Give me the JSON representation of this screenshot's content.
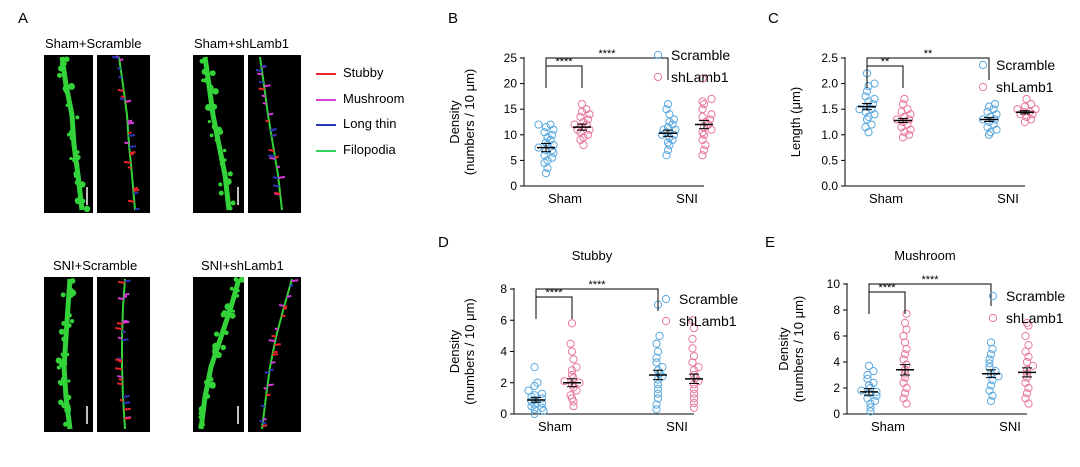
{
  "panel_a": {
    "letter": "A",
    "images": [
      {
        "title": "Sham+Scramble"
      },
      {
        "title": "Sham+shLamb1"
      },
      {
        "title": "SNI+Scramble"
      },
      {
        "title": "SNI+shLamb1"
      }
    ],
    "legend": [
      {
        "label": "Stubby",
        "color": "#e8262a"
      },
      {
        "label": "Mushroom",
        "color": "#d63cd6"
      },
      {
        "label": "Long thin",
        "color": "#2b35b8"
      },
      {
        "label": "Filopodia",
        "color": "#33d35a"
      }
    ]
  },
  "colors": {
    "scramble": "#5aa9df",
    "shlamb1": "#e8789a",
    "dendrite_green": "#33d33a"
  },
  "chart_data": [
    {
      "panel": "B",
      "type": "scatter",
      "title": "",
      "ylabel_lines": [
        "Density",
        "(numbers / 10 μm)"
      ],
      "ylim": [
        0,
        25
      ],
      "yticks": [
        0,
        5,
        10,
        15,
        20,
        25
      ],
      "categories": [
        "Sham",
        "SNI"
      ],
      "series": [
        {
          "name": "Scramble",
          "mean": [
            7.5,
            10.3
          ],
          "sem": [
            0.8,
            0.6
          ],
          "points": [
            [
              2.5,
              3.5,
              4.5,
              5,
              5.5,
              6,
              6.5,
              7,
              7,
              7.5,
              8,
              8,
              8.5,
              9,
              9.5,
              10,
              10.5,
              11,
              11.5,
              12,
              12
            ],
            [
              6,
              7,
              8,
              8.5,
              9,
              9.5,
              10,
              10,
              10.5,
              11,
              11,
              11.5,
              12,
              12.5,
              13,
              14,
              15,
              16
            ]
          ]
        },
        {
          "name": "shLamb1",
          "mean": [
            11.5,
            12.0
          ],
          "sem": [
            0.6,
            0.8
          ],
          "points": [
            [
              8,
              9,
              9.5,
              10,
              10.5,
              11,
              11,
              11.5,
              12,
              12,
              12.5,
              13,
              13.5,
              14,
              14.5,
              15,
              16
            ],
            [
              6,
              7,
              8,
              9,
              10,
              10.5,
              11,
              11.5,
              12,
              12.5,
              13,
              13.5,
              14,
              15,
              16,
              16.5,
              17,
              21
            ]
          ]
        }
      ],
      "significance": [
        {
          "label": "****",
          "from": "Sham Scramble",
          "to": "Sham shLamb1"
        },
        {
          "label": "****",
          "from": "Sham Scramble",
          "to": "SNI Scramble"
        }
      ]
    },
    {
      "panel": "C",
      "type": "scatter",
      "title": "",
      "ylabel_lines": [
        "Length (μm)"
      ],
      "ylim": [
        0,
        2.5
      ],
      "yticks": [
        0.0,
        0.5,
        1.0,
        1.5,
        2.0,
        2.5
      ],
      "categories": [
        "Sham",
        "SNI"
      ],
      "series": [
        {
          "name": "Scramble",
          "mean": [
            1.55,
            1.3
          ],
          "sem": [
            0.06,
            0.04
          ],
          "points": [
            [
              1.05,
              1.15,
              1.2,
              1.3,
              1.35,
              1.4,
              1.45,
              1.5,
              1.5,
              1.55,
              1.6,
              1.65,
              1.7,
              1.75,
              1.85,
              1.95,
              2.0,
              2.2
            ],
            [
              1.0,
              1.05,
              1.1,
              1.15,
              1.2,
              1.25,
              1.3,
              1.3,
              1.35,
              1.4,
              1.45,
              1.5,
              1.55,
              1.6
            ]
          ]
        },
        {
          "name": "shLamb1",
          "mean": [
            1.28,
            1.44
          ],
          "sem": [
            0.04,
            0.03
          ],
          "points": [
            [
              0.95,
              1.0,
              1.05,
              1.1,
              1.15,
              1.2,
              1.25,
              1.3,
              1.3,
              1.35,
              1.4,
              1.45,
              1.5,
              1.6,
              1.7
            ],
            [
              1.25,
              1.3,
              1.35,
              1.4,
              1.4,
              1.45,
              1.45,
              1.5,
              1.5,
              1.55,
              1.6,
              1.7
            ]
          ]
        }
      ],
      "significance": [
        {
          "label": "**",
          "from": "Sham Scramble",
          "to": "Sham shLamb1"
        },
        {
          "label": "**",
          "from": "Sham Scramble",
          "to": "SNI Scramble"
        }
      ]
    },
    {
      "panel": "D",
      "type": "scatter",
      "title": "Stubby",
      "ylabel_lines": [
        "Density",
        "(numbers / 10 μm)"
      ],
      "ylim": [
        0,
        8
      ],
      "yticks": [
        0,
        2,
        4,
        6,
        8
      ],
      "categories": [
        "Sham",
        "SNI"
      ],
      "series": [
        {
          "name": "Scramble",
          "mean": [
            0.9,
            2.5
          ],
          "sem": [
            0.15,
            0.3
          ],
          "points": [
            [
              0,
              0.2,
              0.3,
              0.4,
              0.5,
              0.6,
              0.7,
              0.8,
              0.9,
              1.0,
              1.1,
              1.2,
              1.3,
              1.5,
              1.8,
              2.0,
              3.0
            ],
            [
              0.3,
              0.6,
              1.0,
              1.3,
              1.6,
              1.9,
              2.2,
              2.4,
              2.6,
              2.8,
              3.0,
              3.3,
              3.6,
              4.0,
              4.5,
              5.0,
              7.0
            ]
          ]
        },
        {
          "name": "shLamb1",
          "mean": [
            2.0,
            2.25
          ],
          "sem": [
            0.25,
            0.3
          ],
          "points": [
            [
              0.5,
              0.8,
              1.0,
              1.2,
              1.5,
              1.7,
              1.9,
              2.0,
              2.1,
              2.3,
              2.5,
              2.8,
              3.0,
              3.5,
              4.0,
              4.5,
              5.8
            ],
            [
              0.4,
              0.7,
              1.0,
              1.3,
              1.6,
              1.9,
              2.1,
              2.3,
              2.5,
              2.8,
              3.0,
              3.3,
              3.7,
              4.2,
              4.8,
              5.5,
              6.0
            ]
          ]
        }
      ],
      "significance": [
        {
          "label": "****",
          "from": "Sham Scramble",
          "to": "Sham shLamb1"
        },
        {
          "label": "****",
          "from": "Sham Scramble",
          "to": "SNI Scramble"
        }
      ]
    },
    {
      "panel": "E",
      "type": "scatter",
      "title": "Mushroom",
      "ylabel_lines": [
        "Density",
        "(numbers / 10 μm)"
      ],
      "ylim": [
        0,
        10
      ],
      "yticks": [
        0,
        2,
        4,
        6,
        8,
        10
      ],
      "categories": [
        "Sham",
        "SNI"
      ],
      "series": [
        {
          "name": "Scramble",
          "mean": [
            1.7,
            3.1
          ],
          "sem": [
            0.25,
            0.3
          ],
          "points": [
            [
              0.2,
              0.5,
              0.8,
              1.0,
              1.2,
              1.4,
              1.6,
              1.7,
              1.8,
              2.0,
              2.2,
              2.4,
              2.7,
              3.0,
              3.3,
              3.7
            ],
            [
              1.0,
              1.4,
              1.8,
              2.2,
              2.6,
              2.9,
              3.1,
              3.3,
              3.6,
              3.9,
              4.2,
              4.6,
              5.0,
              5.5
            ]
          ]
        },
        {
          "name": "shLamb1",
          "mean": [
            3.4,
            3.2
          ],
          "sem": [
            0.4,
            0.35
          ],
          "points": [
            [
              0.8,
              1.2,
              1.6,
              2.0,
              2.4,
              2.8,
              3.1,
              3.4,
              3.8,
              4.2,
              4.6,
              5.0,
              5.5,
              6.0,
              6.5,
              7.0,
              7.7
            ],
            [
              0.8,
              1.2,
              1.6,
              2.0,
              2.4,
              2.8,
              3.1,
              3.4,
              3.7,
              4.0,
              4.4,
              4.8,
              5.3,
              6.0,
              6.8,
              7.0
            ]
          ]
        }
      ],
      "significance": [
        {
          "label": "****",
          "from": "Sham Scramble",
          "to": "Sham shLamb1"
        },
        {
          "label": "****",
          "from": "Sham Scramble",
          "to": "SNI Scramble"
        }
      ]
    }
  ]
}
